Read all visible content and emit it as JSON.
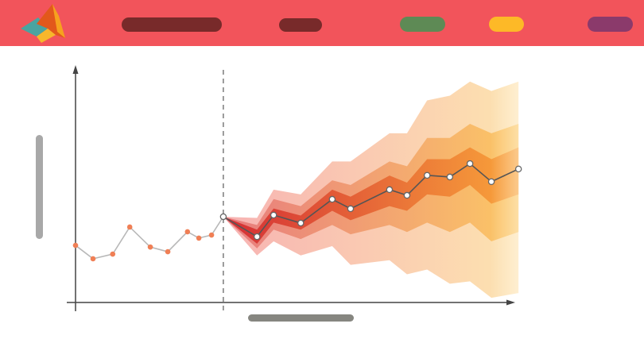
{
  "chart_data": {
    "type": "fan",
    "xlim": [
      0,
      100
    ],
    "ylim": [
      0,
      100
    ],
    "history": {
      "color": "#f07f55",
      "line_color": "#b8b8b8",
      "x": [
        0,
        4,
        8.5,
        12.4,
        17.1,
        21.1,
        25.6,
        28.2,
        31.1,
        33.8
      ],
      "values": [
        24.3,
        18.6,
        20.6,
        32.1,
        23.6,
        21.6,
        30.1,
        27.4,
        28.7,
        36.5
      ]
    },
    "forecast": {
      "color": "#ffffff",
      "line_color": "#555555",
      "x": [
        33.8,
        41.5,
        45.3,
        51.5,
        58.7,
        62.9,
        71.8,
        75.8,
        80.4,
        85.6,
        90.2,
        95.1,
        101.3
      ],
      "values": [
        36.5,
        28.0,
        37.2,
        33.8,
        43.9,
        39.9,
        48.0,
        45.6,
        54.1,
        53.4,
        59.1,
        51.4,
        56.8
      ]
    },
    "bands": [
      {
        "colors": [
          "#f7b3b3",
          "#fde3b0"
        ],
        "upper": [
          36.5,
          36,
          48,
          46,
          60,
          60,
          72,
          72,
          86,
          88,
          94,
          90,
          94
        ],
        "lower": [
          36.5,
          20,
          26,
          20,
          24,
          16,
          18,
          12,
          14,
          8,
          9,
          2,
          4
        ]
      },
      {
        "colors": [
          "#e77a7e",
          "#fcc866"
        ],
        "upper": [
          36.5,
          33,
          44,
          41,
          52,
          50,
          60,
          58,
          70,
          70,
          76,
          72,
          76
        ],
        "lower": [
          36.5,
          23,
          31,
          27,
          33,
          29,
          33,
          30,
          34,
          30,
          34,
          26,
          30
        ]
      },
      {
        "colors": [
          "#d42d35",
          "#f9a43a"
        ],
        "upper": [
          36.5,
          31,
          40,
          37,
          48,
          45,
          54,
          51,
          61,
          61,
          66,
          61,
          66
        ],
        "lower": [
          36.5,
          25,
          34,
          31,
          39,
          35,
          41,
          39,
          46,
          45,
          50,
          42,
          46
        ]
      }
    ]
  }
}
